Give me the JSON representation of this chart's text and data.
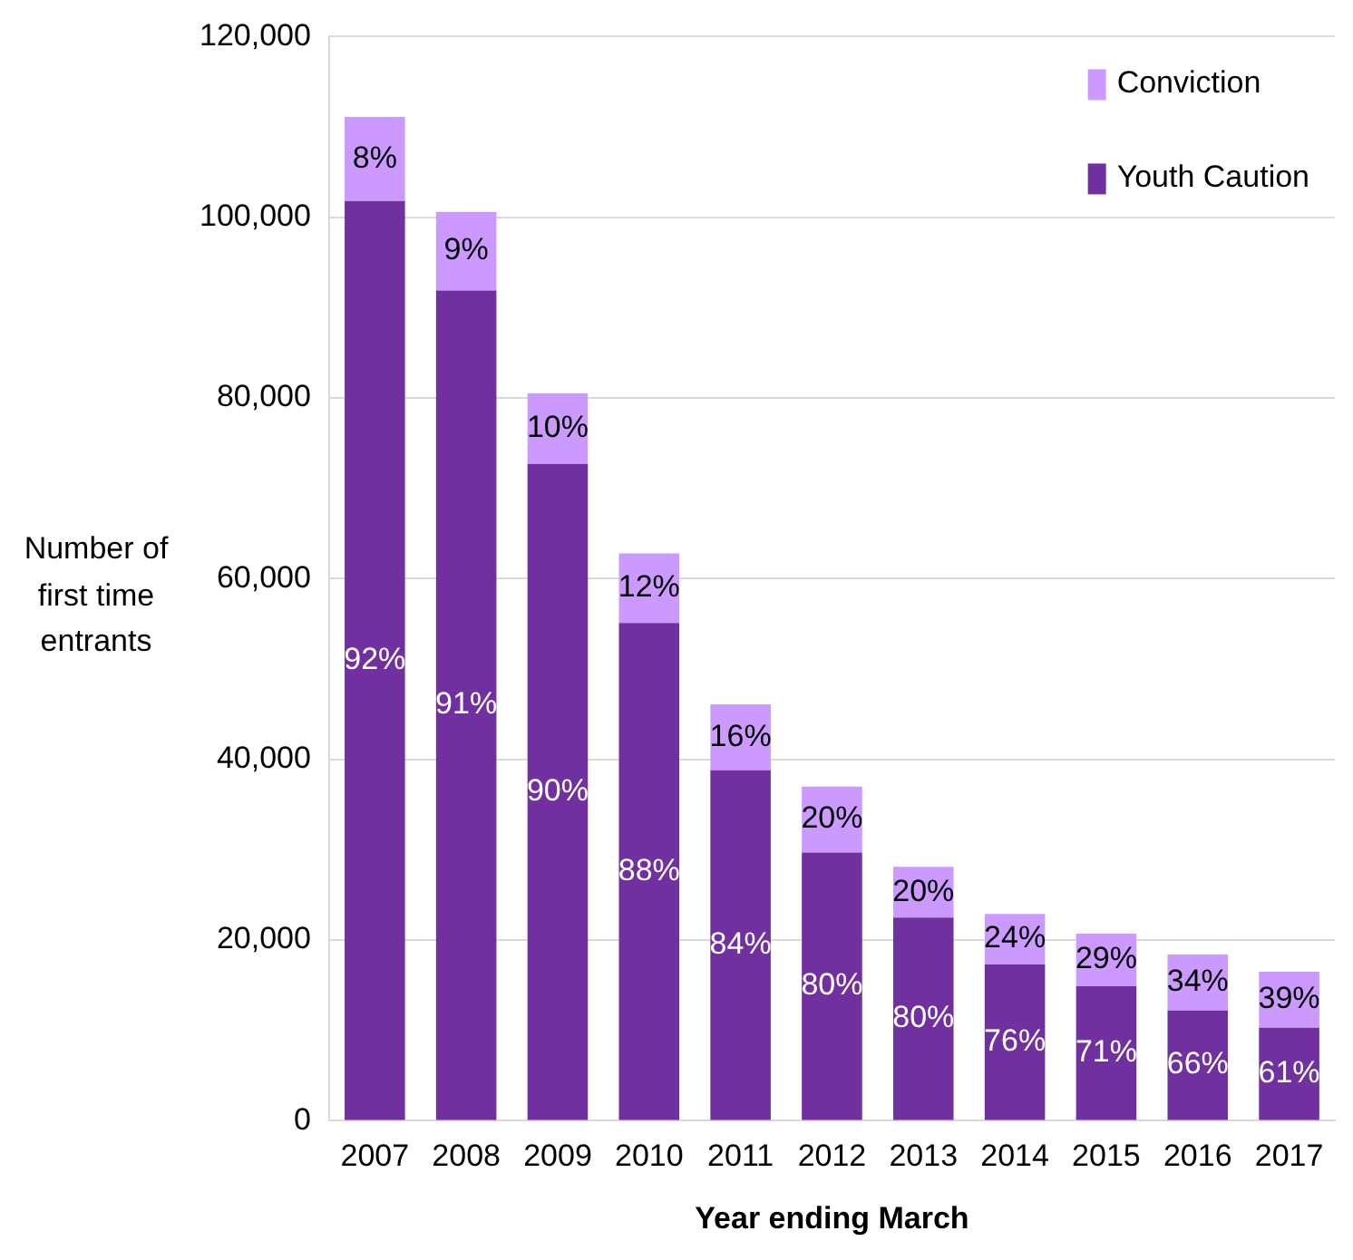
{
  "chart_data": {
    "type": "bar",
    "stacked": true,
    "xlabel": "Year ending March",
    "ylabel": "Number of first time entrants",
    "categories": [
      "2007",
      "2008",
      "2009",
      "2010",
      "2011",
      "2012",
      "2013",
      "2014",
      "2015",
      "2016",
      "2017"
    ],
    "series": [
      {
        "name": "Youth Caution",
        "color": "#7030a0",
        "values": [
          101800,
          91900,
          72700,
          55100,
          38800,
          29700,
          22500,
          17300,
          14900,
          12200,
          10300
        ]
      },
      {
        "name": "Conviction",
        "color": "#cc99ff",
        "values": [
          9300,
          8700,
          7800,
          7700,
          7300,
          7300,
          5600,
          5600,
          5800,
          6200,
          6200
        ]
      }
    ],
    "annotations": [
      "92%",
      "91%",
      "90%",
      "88%",
      "84%",
      "80%",
      "80%",
      "76%",
      "71%",
      "66%",
      "61%",
      "8%",
      "9%",
      "10%",
      "12%",
      "16%",
      "20%",
      "20%",
      "24%",
      "29%",
      "34%",
      "39%"
    ],
    "ylim": [
      0,
      120000
    ],
    "yticks": [
      0,
      {
        "value": 20000,
        "label": "20,000"
      },
      {
        "value": 40000,
        "label": "40,000"
      },
      {
        "value": 60000,
        "label": "60,000"
      },
      {
        "value": 80000,
        "label": "80,000"
      },
      {
        "value": 100000,
        "label": "100,000"
      },
      {
        "value": 120000,
        "label": "120,000"
      }
    ],
    "grid": "y",
    "legend": "top right"
  }
}
